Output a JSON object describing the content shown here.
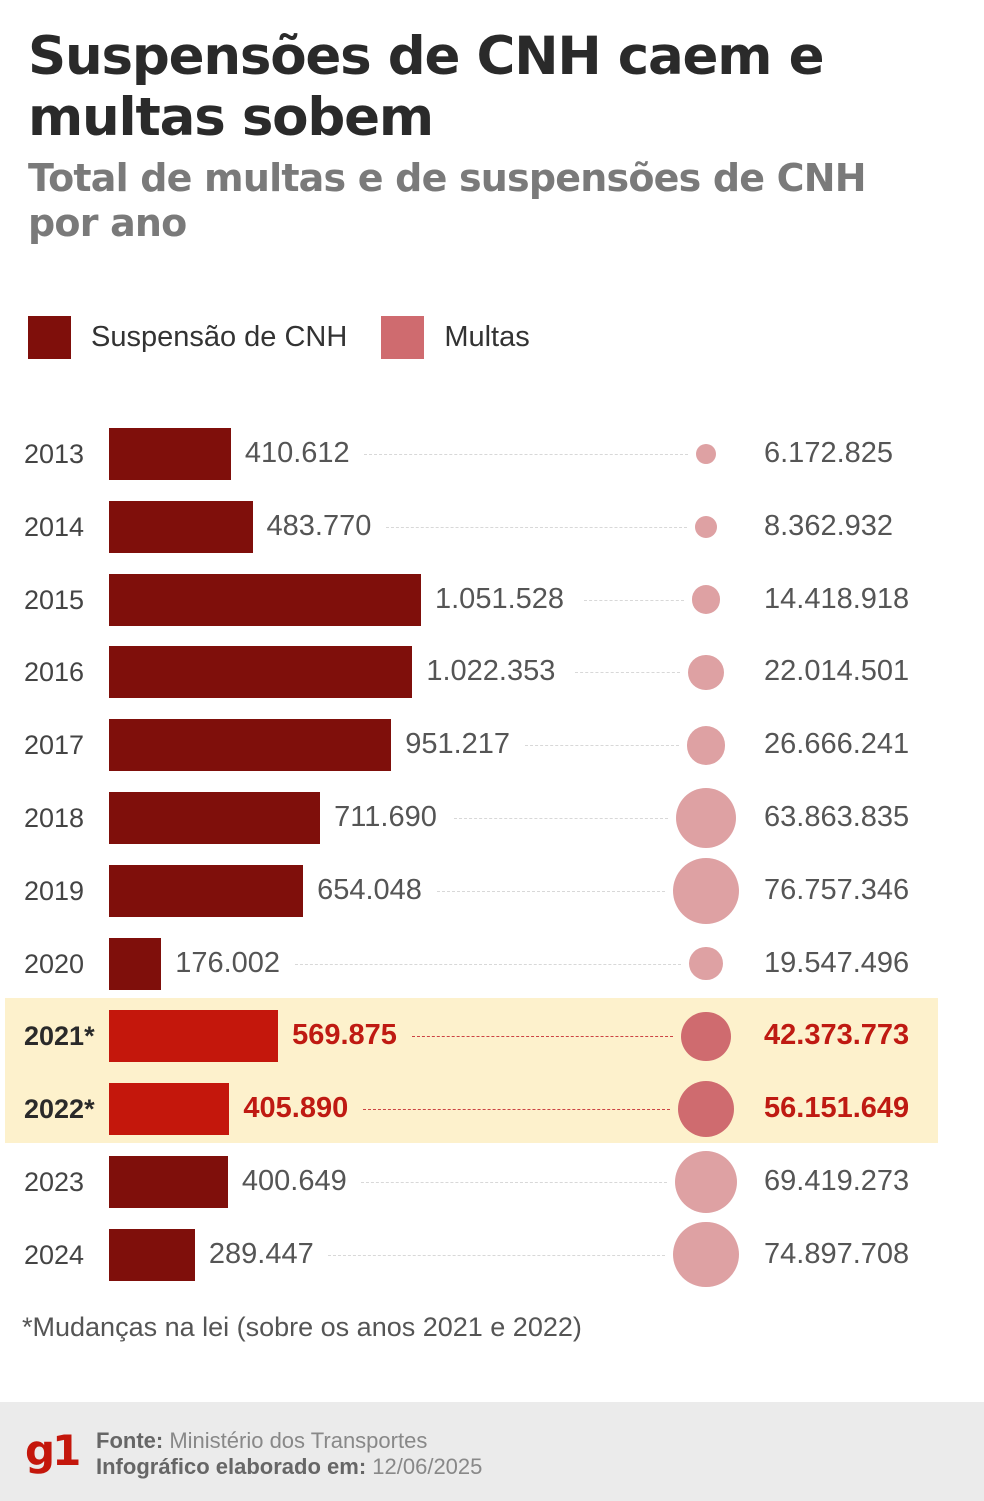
{
  "header": {
    "title": "Suspensões de CNH caem e multas sobem",
    "subtitle": "Total de multas e de suspensões de CNH por ano"
  },
  "legend": [
    {
      "label": "Suspensão de CNH",
      "color": "#7f0f0b"
    },
    {
      "label": "Multas",
      "color": "#cf6b6f"
    }
  ],
  "chart_data": {
    "type": "bar",
    "title": "Suspensões de CNH caem e multas sobem",
    "subtitle": "Total de multas e de suspensões de CNH por ano",
    "categories": [
      "2013",
      "2014",
      "2015",
      "2016",
      "2017",
      "2018",
      "2019",
      "2020",
      "2021*",
      "2022*",
      "2023",
      "2024"
    ],
    "series": [
      {
        "name": "Suspensão de CNH",
        "mark": "bar",
        "values": [
          410612,
          483770,
          1051528,
          1022353,
          951217,
          711690,
          654048,
          176002,
          569875,
          405890,
          400649,
          289447
        ],
        "labels": [
          "410.612",
          "483.770",
          "1.051.528",
          "1.022.353",
          "951.217",
          "711.690",
          "654.048",
          "176.002",
          "569.875",
          "405.890",
          "400.649",
          "289.447"
        ]
      },
      {
        "name": "Multas",
        "mark": "bubble",
        "values": [
          6172825,
          8362932,
          14418918,
          22014501,
          26666241,
          63863835,
          76757346,
          19547496,
          42373773,
          56151649,
          69419273,
          74897708
        ],
        "labels": [
          "6.172.825",
          "8.362.932",
          "14.418.918",
          "22.014.501",
          "26.666.241",
          "63.863.835",
          "76.757.346",
          "19.547.496",
          "42.373.773",
          "56.151.649",
          "69.419.273",
          "74.897.708"
        ]
      }
    ],
    "highlighted": [
      "2021*",
      "2022*"
    ],
    "colors": {
      "bar": "#7f0f0b",
      "bar_highlight": "#c4170c",
      "bubble": "#dea1a3",
      "bubble_highlight": "#cf6b6f",
      "highlight_band": "#fdf1cc"
    }
  },
  "footnote": "*Mudanças na lei (sobre os anos 2021 e 2022)",
  "footer": {
    "logo": "g1",
    "source_label": "Fonte:",
    "source_value": "Ministério dos Transportes",
    "date_label": "Infográfico elaborado em:",
    "date_value": "12/06/2025"
  }
}
